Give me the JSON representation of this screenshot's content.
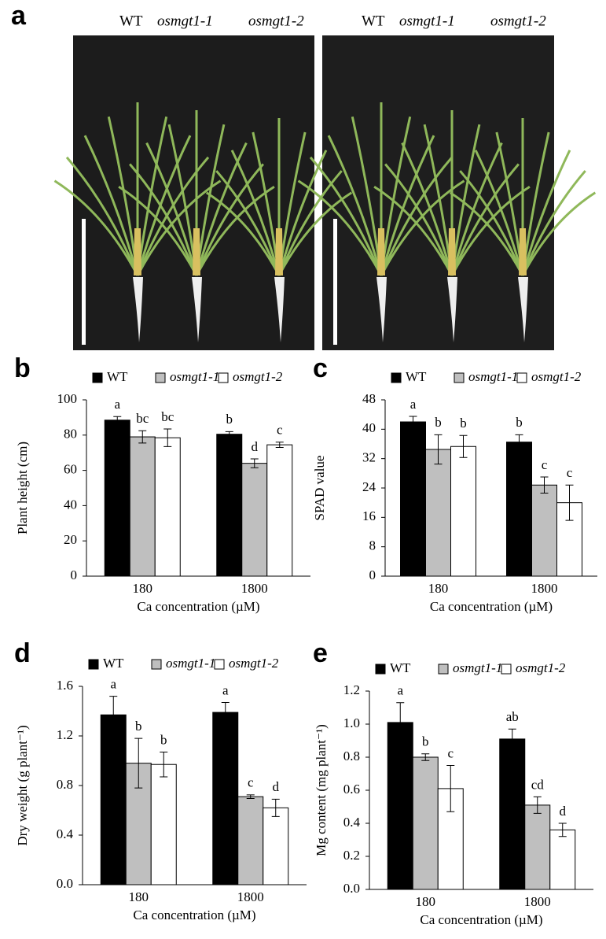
{
  "photo": {
    "panel": "a",
    "groups": [
      [
        "WT",
        "osmgt1-1",
        "osmgt1-2"
      ],
      [
        "WT",
        "osmgt1-1",
        "osmgt1-2"
      ]
    ]
  },
  "chart_data": [
    {
      "type": "bar",
      "panel": "b",
      "y_label": "Plant height (cm)",
      "x_label": "Ca concentration (µM)",
      "categories": [
        "180",
        "1800"
      ],
      "ylim": [
        0,
        100
      ],
      "yticks": [
        0,
        20,
        40,
        60,
        80,
        100
      ],
      "series": [
        {
          "name": "WT",
          "color": "#000000",
          "values": [
            88.5,
            80.5
          ],
          "errors": [
            2,
            1.5
          ],
          "labels": [
            "a",
            "b"
          ]
        },
        {
          "name": "osmgt1-1",
          "color": "#bfbfbf",
          "values": [
            79,
            64
          ],
          "errors": [
            3.5,
            2.5
          ],
          "labels": [
            "bc",
            "d"
          ]
        },
        {
          "name": "osmgt1-2",
          "color": "#ffffff",
          "values": [
            78.5,
            74.5
          ],
          "errors": [
            5,
            1.5
          ],
          "labels": [
            "bc",
            "c"
          ]
        }
      ]
    },
    {
      "type": "bar",
      "panel": "c",
      "y_label": "SPAD value",
      "x_label": "Ca concentration (µM)",
      "categories": [
        "180",
        "1800"
      ],
      "ylim": [
        0,
        48
      ],
      "yticks": [
        0,
        8,
        16,
        24,
        32,
        40,
        48
      ],
      "series": [
        {
          "name": "WT",
          "color": "#000000",
          "values": [
            42,
            36.5
          ],
          "errors": [
            1.5,
            2
          ],
          "labels": [
            "a",
            "b"
          ]
        },
        {
          "name": "osmgt1-1",
          "color": "#bfbfbf",
          "values": [
            34.5,
            24.8
          ],
          "errors": [
            4,
            2.2
          ],
          "labels": [
            "b",
            "c"
          ]
        },
        {
          "name": "osmgt1-2",
          "color": "#ffffff",
          "values": [
            35.3,
            20
          ],
          "errors": [
            3,
            4.8
          ],
          "labels": [
            "b",
            "c"
          ]
        }
      ]
    },
    {
      "type": "bar",
      "panel": "d",
      "y_label": "Dry weight (g plant⁻¹)",
      "x_label": "Ca concentration (µM)",
      "categories": [
        "180",
        "1800"
      ],
      "ylim": [
        0,
        1.6
      ],
      "yticks": [
        {
          "value": 0,
          "label": "0.0"
        },
        0.4,
        0.8,
        1.2,
        1.6
      ],
      "series": [
        {
          "name": "WT",
          "color": "#000000",
          "values": [
            1.37,
            1.39
          ],
          "errors": [
            0.15,
            0.08
          ],
          "labels": [
            "a",
            "a"
          ]
        },
        {
          "name": "osmgt1-1",
          "color": "#bfbfbf",
          "values": [
            0.98,
            0.71
          ],
          "errors": [
            0.2,
            0.015
          ],
          "labels": [
            "b",
            "c"
          ]
        },
        {
          "name": "osmgt1-2",
          "color": "#ffffff",
          "values": [
            0.97,
            0.62
          ],
          "errors": [
            0.1,
            0.07
          ],
          "labels": [
            "b",
            "d"
          ]
        }
      ]
    },
    {
      "type": "bar",
      "panel": "e",
      "y_label": "Mg content (mg plant⁻¹)",
      "x_label": "Ca concentration (µM)",
      "categories": [
        "180",
        "1800"
      ],
      "ylim": [
        0,
        1.2
      ],
      "yticks": [
        {
          "value": 0,
          "label": "0.0"
        },
        0.2,
        0.4,
        0.6,
        0.8,
        {
          "value": 1,
          "label": "1.0"
        },
        1.2
      ],
      "series": [
        {
          "name": "WT",
          "color": "#000000",
          "values": [
            1.01,
            0.91
          ],
          "errors": [
            0.12,
            0.06
          ],
          "labels": [
            "a",
            "ab"
          ]
        },
        {
          "name": "osmgt1-1",
          "color": "#bfbfbf",
          "values": [
            0.8,
            0.51
          ],
          "errors": [
            0.02,
            0.05
          ],
          "labels": [
            "b",
            "cd"
          ]
        },
        {
          "name": "osmgt1-2",
          "color": "#ffffff",
          "values": [
            0.61,
            0.36
          ],
          "errors": [
            0.14,
            0.04
          ],
          "labels": [
            "c",
            "d"
          ]
        }
      ]
    }
  ]
}
